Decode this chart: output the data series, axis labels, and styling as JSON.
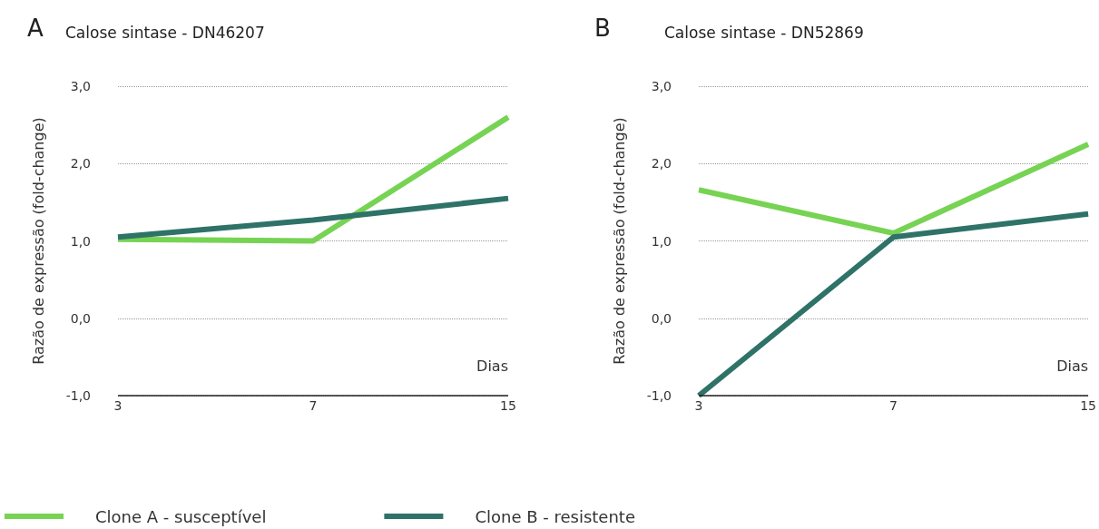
{
  "chart_data": [
    {
      "type": "line",
      "title": "Calose sintase - DN46207",
      "annotations": [
        "A"
      ],
      "xlabel": "Dias",
      "ylabel": "Razão de expressão (fold-change)",
      "categories": [
        "3",
        "7",
        "15"
      ],
      "series": [
        {
          "name": "Clone A - susceptível",
          "color": "#77d353",
          "values": [
            1.02,
            1.0,
            2.6
          ]
        },
        {
          "name": "Clone B - resistente",
          "color": "#2e7268",
          "values": [
            1.05,
            1.27,
            1.55
          ]
        }
      ],
      "ylim": [
        -1,
        3
      ],
      "yticks": [
        {
          "value": -1,
          "label": "-1,0"
        },
        {
          "value": 0,
          "label": "0,0"
        },
        {
          "value": 1,
          "label": "1,0"
        },
        {
          "value": 2,
          "label": "2,0"
        },
        {
          "value": 3,
          "label": "3,0"
        }
      ],
      "grid": "y",
      "legend": "bottom",
      "marker": "none",
      "line_style": "solid"
    },
    {
      "type": "line",
      "title": "Calose sintase - DN52869",
      "annotations": [
        "B"
      ],
      "xlabel": "Dias",
      "ylabel": "Razão de expressão (fold-change)",
      "categories": [
        "3",
        "7",
        "15"
      ],
      "series": [
        {
          "color": "#77d353",
          "values": [
            1.66,
            1.1,
            2.25
          ]
        },
        {
          "color": "#2e7268",
          "values": [
            -1.0,
            1.05,
            1.35
          ]
        }
      ],
      "ylim": [
        -1,
        3
      ],
      "yticks": [
        {
          "value": -1,
          "label": "-1,0"
        },
        {
          "value": 0,
          "label": "0,0"
        },
        {
          "value": 1,
          "label": "1,0"
        },
        {
          "value": 2,
          "label": "2,0"
        },
        {
          "value": 3,
          "label": "3,0"
        }
      ],
      "grid": "y",
      "marker": "none",
      "line_style": "solid"
    }
  ]
}
